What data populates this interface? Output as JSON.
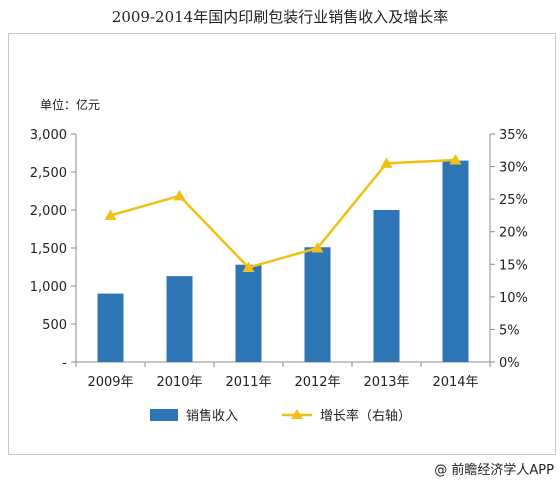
{
  "chart_data": {
    "type": "bar",
    "title": "2009-2014年国内印刷包装行业销售收入及增长率",
    "unit_label": "单位：亿元",
    "categories": [
      "2009年",
      "2010年",
      "2011年",
      "2012年",
      "2013年",
      "2014年"
    ],
    "series": [
      {
        "name": "销售收入",
        "type": "bar",
        "axis": "left",
        "color": "#2e75b6",
        "values": [
          900,
          1130,
          1280,
          1510,
          2000,
          2650
        ]
      },
      {
        "name": "增长率（右轴）",
        "type": "line",
        "axis": "right",
        "color": "#f2c012",
        "marker": "triangle",
        "values": [
          22.5,
          25.5,
          14.5,
          17.5,
          30.5,
          31
        ]
      }
    ],
    "y_left": {
      "ylim": [
        0,
        3000
      ],
      "ticks": [
        0,
        500,
        1000,
        1500,
        2000,
        2500,
        3000
      ],
      "tick_labels": [
        "-",
        "500",
        "1,000",
        "1,500",
        "2,000",
        "2,500",
        "3,000"
      ]
    },
    "y_right": {
      "ylim": [
        0,
        35
      ],
      "ticks": [
        0,
        5,
        10,
        15,
        20,
        25,
        30,
        35
      ],
      "tick_labels": [
        "0%",
        "5%",
        "10%",
        "15%",
        "20%",
        "25%",
        "30%",
        "35%"
      ]
    },
    "grid": false,
    "legend": "bottom-center"
  },
  "footer": {
    "brand": "@ 前瞻经济学人APP"
  },
  "colors": {
    "bar": "#2e75b6",
    "line": "#f2c012",
    "axis": "#8c8c8c"
  }
}
